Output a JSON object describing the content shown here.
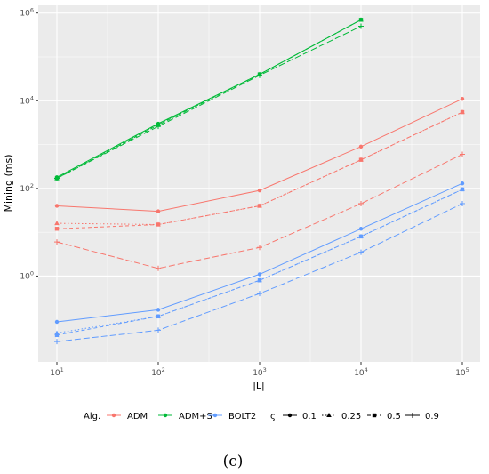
{
  "caption": "(c)",
  "chart_data": {
    "type": "line",
    "title": "",
    "xlabel": "|L|",
    "ylabel": "Mining (ms)",
    "x_scale": "log10",
    "y_scale": "log10",
    "x": [
      10,
      100,
      1000,
      10000,
      100000
    ],
    "x_tick_labels": [
      {
        "base": "10",
        "exp": "1"
      },
      {
        "base": "10",
        "exp": "2"
      },
      {
        "base": "10",
        "exp": "3"
      },
      {
        "base": "10",
        "exp": "4"
      },
      {
        "base": "10",
        "exp": "5"
      }
    ],
    "y_tick_labels": [
      {
        "base": "10",
        "exp": "0"
      },
      {
        "base": "10",
        "exp": "2"
      },
      {
        "base": "10",
        "exp": "4"
      },
      {
        "base": "10",
        "exp": "6"
      }
    ],
    "xlim": [
      10,
      100000
    ],
    "ylim": [
      0.011,
      1500000
    ],
    "grid": true,
    "legend_placement": "bottom",
    "legend": {
      "color_title": "Alg.",
      "shape_title": "ς",
      "algorithms": [
        {
          "name": "ADM",
          "color": "#f8766d"
        },
        {
          "name": "ADM+S",
          "color": "#00ba38"
        },
        {
          "name": "BOLT2",
          "color": "#619cff"
        }
      ],
      "levels": [
        {
          "name": "0.1",
          "dash": "solid",
          "marker": "circle"
        },
        {
          "name": "0.25",
          "dash": "dotted",
          "marker": "triangle"
        },
        {
          "name": "0.5",
          "dash": "dashed",
          "marker": "square"
        },
        {
          "name": "0.9",
          "dash": "longdash",
          "marker": "plus"
        }
      ]
    },
    "series": [
      {
        "alg": "ADM",
        "level": "0.1",
        "values": [
          40,
          30,
          90,
          900,
          11000
        ]
      },
      {
        "alg": "ADM",
        "level": "0.25",
        "values": [
          16,
          15,
          40,
          450,
          5500
        ]
      },
      {
        "alg": "ADM",
        "level": "0.5",
        "values": [
          12,
          15,
          40,
          450,
          5500
        ]
      },
      {
        "alg": "ADM",
        "level": "0.9",
        "values": [
          6,
          1.5,
          4.5,
          45,
          600
        ]
      },
      {
        "alg": "ADM+S",
        "level": "0.1",
        "values": [
          180,
          3000,
          40000,
          700000,
          null
        ]
      },
      {
        "alg": "ADM+S",
        "level": "0.25",
        "values": [
          170,
          2900,
          40000,
          700000,
          null
        ]
      },
      {
        "alg": "ADM+S",
        "level": "0.5",
        "values": [
          170,
          2800,
          40000,
          700000,
          null
        ]
      },
      {
        "alg": "ADM+S",
        "level": "0.9",
        "values": [
          170,
          2600,
          38000,
          500000,
          null
        ]
      },
      {
        "alg": "BOLT2",
        "level": "0.1",
        "values": [
          0.09,
          0.17,
          1.1,
          12,
          130
        ]
      },
      {
        "alg": "BOLT2",
        "level": "0.25",
        "values": [
          0.05,
          0.12,
          0.8,
          8,
          95
        ]
      },
      {
        "alg": "BOLT2",
        "level": "0.5",
        "values": [
          0.045,
          0.12,
          0.8,
          8,
          95
        ]
      },
      {
        "alg": "BOLT2",
        "level": "0.9",
        "values": [
          0.032,
          0.058,
          0.4,
          3.5,
          45
        ]
      }
    ]
  }
}
